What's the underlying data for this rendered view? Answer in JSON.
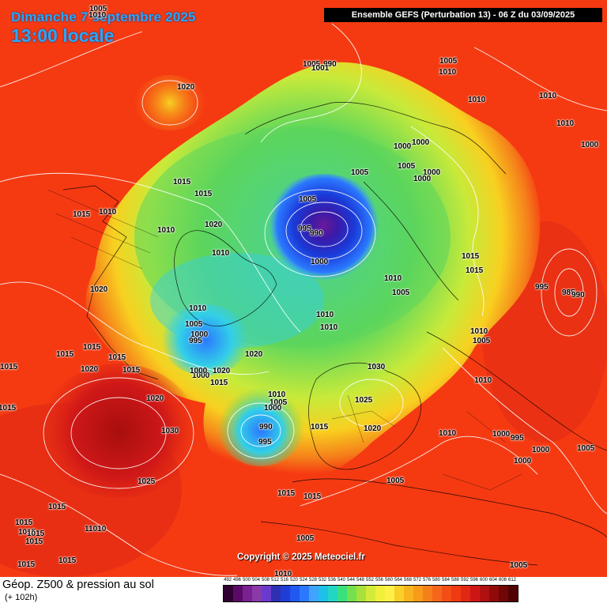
{
  "header": {
    "date": "Dimanche 7 septembre 2025",
    "local_time": "13:00 locale",
    "run_info": "Ensemble GEFS  (Perturbation 13)  -  06 Z du 03/09/2025"
  },
  "footer": {
    "variable": "Géop. Z500 & pression au sol",
    "lead_time": "(+ 102h)",
    "copyright": "Copyright © 2025 Meteociel.fr"
  },
  "colors": {
    "background_warm": "#f53a12",
    "high_red": "#d01818",
    "orange": "#f5801a",
    "yellow": "#f8d020",
    "green": "#5cd65c",
    "cyan": "#32cfe8",
    "blue": "#1a3ad8",
    "low_purple": "#6a1a9a",
    "isobar": "#ffffff"
  },
  "color_scale": {
    "labels": [
      "492",
      "496",
      "500",
      "504",
      "508",
      "512",
      "516",
      "520",
      "524",
      "528",
      "532",
      "536",
      "540",
      "544",
      "548",
      "552",
      "556",
      "560",
      "564",
      "568",
      "572",
      "576",
      "580",
      "584",
      "588",
      "592",
      "596",
      "600",
      "604",
      "608",
      "612"
    ],
    "colors": [
      "#300030",
      "#5a0a66",
      "#7a2090",
      "#8a3aa8",
      "#6a3acc",
      "#2f2fb3",
      "#1e3ed6",
      "#2058f0",
      "#2b78ff",
      "#3fa3ff",
      "#1cc0e8",
      "#22d6c4",
      "#39e07c",
      "#74e04e",
      "#a8e03c",
      "#d4ea3a",
      "#f0f03a",
      "#fff048",
      "#f8d028",
      "#f8b41e",
      "#f89a1a",
      "#f5801a",
      "#f5661a",
      "#f34e16",
      "#f03a12",
      "#e02814",
      "#cc1616",
      "#b01010",
      "#900a0a",
      "#700606",
      "#500202"
    ]
  },
  "pressure_labels": [
    {
      "id": "p01",
      "text": "1005"
    },
    {
      "id": "p02",
      "text": "1010"
    },
    {
      "id": "p03",
      "text": "1020"
    },
    {
      "id": "p04",
      "text": "1005"
    },
    {
      "id": "p05",
      "text": "990"
    },
    {
      "id": "p06",
      "text": "1001"
    },
    {
      "id": "p07",
      "text": "1005"
    },
    {
      "id": "p08",
      "text": "1010"
    },
    {
      "id": "p09",
      "text": "1010"
    },
    {
      "id": "p10",
      "text": "1010"
    },
    {
      "id": "p11",
      "text": "1010"
    },
    {
      "id": "p12",
      "text": "1000"
    },
    {
      "id": "p13",
      "text": "1000"
    },
    {
      "id": "p14",
      "text": "1000"
    },
    {
      "id": "p15",
      "text": "1005"
    },
    {
      "id": "p16",
      "text": "1000"
    },
    {
      "id": "p17",
      "text": "1005"
    },
    {
      "id": "p18",
      "text": "1000"
    },
    {
      "id": "p19",
      "text": "1015"
    },
    {
      "id": "p20",
      "text": "1015"
    },
    {
      "id": "p21",
      "text": "1015"
    },
    {
      "id": "p22",
      "text": "1010"
    },
    {
      "id": "p23",
      "text": "1020"
    },
    {
      "id": "p24",
      "text": "1010"
    },
    {
      "id": "p25",
      "text": "1005"
    },
    {
      "id": "p26",
      "text": "995"
    },
    {
      "id": "p27",
      "text": "990"
    },
    {
      "id": "p28",
      "text": "1010"
    },
    {
      "id": "p29",
      "text": "1000"
    },
    {
      "id": "p30",
      "text": "1015"
    },
    {
      "id": "p31",
      "text": "1015"
    },
    {
      "id": "p32",
      "text": "1010"
    },
    {
      "id": "p33",
      "text": "1005"
    },
    {
      "id": "p34",
      "text": "1020"
    },
    {
      "id": "p35",
      "text": "995"
    },
    {
      "id": "p36",
      "text": "985"
    },
    {
      "id": "p37",
      "text": "990"
    },
    {
      "id": "p38",
      "text": "1010"
    },
    {
      "id": "p39",
      "text": "1010"
    },
    {
      "id": "p40",
      "text": "1010"
    },
    {
      "id": "p41",
      "text": "1005"
    },
    {
      "id": "p42",
      "text": "1010"
    },
    {
      "id": "p43",
      "text": "1005"
    },
    {
      "id": "p44",
      "text": "1000"
    },
    {
      "id": "p45",
      "text": "995"
    },
    {
      "id": "p46",
      "text": "1020"
    },
    {
      "id": "p47",
      "text": "1000"
    },
    {
      "id": "p48",
      "text": "1020"
    },
    {
      "id": "p49",
      "text": "1015"
    },
    {
      "id": "p50",
      "text": "1030"
    },
    {
      "id": "p51",
      "text": "1010"
    },
    {
      "id": "p52",
      "text": "1005"
    },
    {
      "id": "p53",
      "text": "1000"
    },
    {
      "id": "p54",
      "text": "1025"
    },
    {
      "id": "p55",
      "text": "990"
    },
    {
      "id": "p56",
      "text": "995"
    },
    {
      "id": "p57",
      "text": "1015"
    },
    {
      "id": "p58",
      "text": "1020"
    },
    {
      "id": "p59",
      "text": "1010"
    },
    {
      "id": "p60",
      "text": "1000"
    },
    {
      "id": "p61",
      "text": "995"
    },
    {
      "id": "p62",
      "text": "1000"
    },
    {
      "id": "p63",
      "text": "1000"
    },
    {
      "id": "p64",
      "text": "1005"
    },
    {
      "id": "p65",
      "text": "1015"
    },
    {
      "id": "p66",
      "text": "1015"
    },
    {
      "id": "p67",
      "text": "1015"
    },
    {
      "id": "p68",
      "text": "1015"
    },
    {
      "id": "p69",
      "text": "1015"
    },
    {
      "id": "p70",
      "text": "1020"
    },
    {
      "id": "p71",
      "text": "1030"
    },
    {
      "id": "p72",
      "text": "1025"
    },
    {
      "id": "p73",
      "text": "1015"
    },
    {
      "id": "p74",
      "text": "1015"
    },
    {
      "id": "p75",
      "text": "1015"
    },
    {
      "id": "p76",
      "text": "1015"
    },
    {
      "id": "p77",
      "text": "1015"
    },
    {
      "id": "p78",
      "text": "11010"
    },
    {
      "id": "p79",
      "text": "1015"
    },
    {
      "id": "p80",
      "text": "1015"
    },
    {
      "id": "p81",
      "text": "1015"
    },
    {
      "id": "p82",
      "text": "1015"
    },
    {
      "id": "p83",
      "text": "1010"
    },
    {
      "id": "p84",
      "text": "1005"
    },
    {
      "id": "p85",
      "text": "1005"
    },
    {
      "id": "p86",
      "text": "1005"
    },
    {
      "id": "p87",
      "text": "1010"
    },
    {
      "id": "p88",
      "text": "1000"
    },
    {
      "id": "p89",
      "text": "1015"
    },
    {
      "id": "p90",
      "text": "1020"
    }
  ]
}
